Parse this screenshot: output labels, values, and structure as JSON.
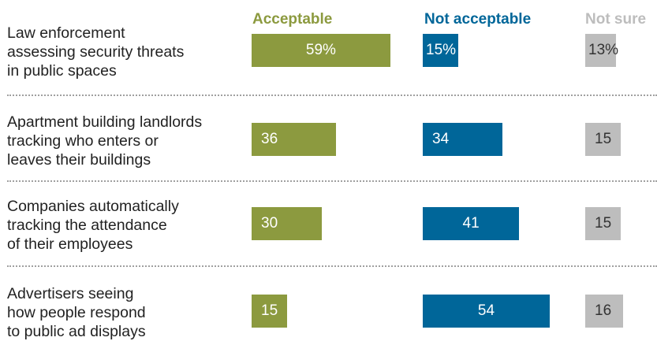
{
  "chart_data": {
    "type": "bar",
    "columns": [
      "Acceptable",
      "Not acceptable",
      "Not sure"
    ],
    "categories": [
      "Law enforcement\nassessing security threats\nin public spaces",
      "Apartment building landlords\ntracking who enters or\nleaves their buildings",
      "Companies automatically\ntracking the attendance\nof their employees",
      "Advertisers seeing\nhow people respond\nto public ad displays"
    ],
    "series": [
      {
        "name": "Acceptable",
        "values": [
          59,
          36,
          30,
          15
        ],
        "labels": [
          "59%",
          "36",
          "30",
          "15"
        ]
      },
      {
        "name": "Not acceptable",
        "values": [
          15,
          34,
          41,
          54
        ],
        "labels": [
          "15%",
          "34",
          "41",
          "54"
        ]
      },
      {
        "name": "Not sure",
        "values": [
          13,
          15,
          15,
          16
        ],
        "labels": [
          "13%",
          "15",
          "15",
          "16"
        ]
      }
    ],
    "colors": {
      "Acceptable": "#8c9a3f",
      "Not acceptable": "#006699",
      "Not sure": "#bdbdbd",
      "label_light": "#ffffff",
      "label_dark": "#333333"
    },
    "grid": false,
    "legend": "top"
  }
}
